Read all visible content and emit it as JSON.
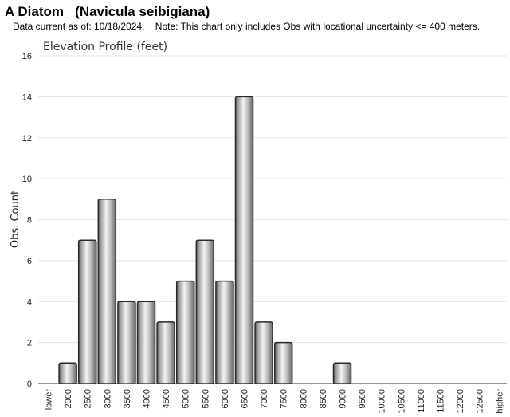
{
  "header": {
    "title": "A Diatom   (Navicula seibigiana)",
    "note": "Data current as of: 10/18/2024.    Note: This chart only includes Obs with locational uncertainty <= 400 meters."
  },
  "chart_data": {
    "type": "bar",
    "title": "Elevation Profile (feet)",
    "xlabel": "",
    "ylabel": "Obs. Count",
    "ylim": [
      0,
      16
    ],
    "yticks": [
      0,
      2,
      4,
      6,
      8,
      10,
      12,
      14,
      16
    ],
    "grid": true,
    "legend": "none",
    "categories": [
      "lower",
      "2000",
      "2500",
      "3000",
      "3500",
      "4000",
      "4500",
      "5000",
      "5500",
      "6000",
      "6500",
      "7000",
      "7500",
      "8000",
      "8500",
      "9000",
      "9500",
      "10000",
      "10500",
      "11000",
      "11500",
      "12000",
      "12500",
      "higher"
    ],
    "values": [
      0,
      1,
      7,
      9,
      4,
      4,
      3,
      5,
      7,
      5,
      14,
      3,
      2,
      0,
      0,
      1,
      0,
      0,
      0,
      0,
      0,
      0,
      0,
      0
    ],
    "bar_color": "#9a9a9a"
  }
}
